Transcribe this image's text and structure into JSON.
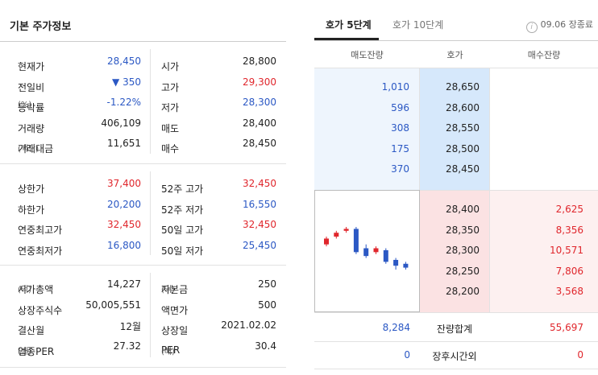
{
  "basic_info": {
    "title": "기본 주가정보",
    "group1": [
      {
        "label": "현재가",
        "unit": "",
        "value": "28,450",
        "value_color": "blue",
        "label2": "시가",
        "unit2": "",
        "value2": "28,800",
        "value2_color": "black"
      },
      {
        "label": "전일비",
        "unit": "",
        "value": "▼ 350",
        "value_color": "blue",
        "label2": "고가",
        "unit2": "",
        "value2": "29,300",
        "value2_color": "red"
      },
      {
        "label": "등락률",
        "unit": "(%)",
        "value": "-1.22%",
        "value_color": "blue",
        "label2": "저가",
        "unit2": "",
        "value2": "28,300",
        "value2_color": "blue"
      },
      {
        "label": "거래량",
        "unit": "",
        "value": "406,109",
        "value_color": "black",
        "label2": "매도",
        "unit2": "",
        "value2": "28,400",
        "value2_color": "black"
      },
      {
        "label": "거래대금",
        "unit": "(백만)",
        "value": "11,651",
        "value_color": "black",
        "label2": "매수",
        "unit2": "",
        "value2": "28,450",
        "value2_color": "black"
      }
    ],
    "group2": [
      {
        "label": "상한가",
        "unit": "",
        "value": "37,400",
        "value_color": "red",
        "label2": "52주 고가",
        "unit2": "",
        "value2": "32,450",
        "value2_color": "red"
      },
      {
        "label": "하한가",
        "unit": "",
        "value": "20,200",
        "value_color": "blue",
        "label2": "52주 저가",
        "unit2": "",
        "value2": "16,550",
        "value2_color": "blue"
      },
      {
        "label": "연중최고가",
        "unit": "",
        "value": "32,450",
        "value_color": "red",
        "label2": "50일 고가",
        "unit2": "",
        "value2": "32,450",
        "value2_color": "red"
      },
      {
        "label": "연중최저가",
        "unit": "",
        "value": "16,800",
        "value_color": "blue",
        "label2": "50일 저가",
        "unit2": "",
        "value2": "25,450",
        "value2_color": "blue"
      }
    ],
    "group3": [
      {
        "label": "시가총액",
        "unit": "(억)",
        "value": "14,227",
        "value_color": "black",
        "label2": "자본금",
        "unit2": "(억)",
        "value2": "250",
        "value2_color": "black"
      },
      {
        "label": "상장주식수",
        "unit": "",
        "value": "50,005,551",
        "value_color": "black",
        "label2": "액면가",
        "unit2": "",
        "value2": "500",
        "value2_color": "black"
      },
      {
        "label": "결산월",
        "unit": "",
        "value": "12월",
        "value_color": "black",
        "label2": "상장일",
        "unit2": "",
        "value2": "2021.02.02",
        "value2_color": "black"
      },
      {
        "label": "업종PER",
        "unit": "(배)",
        "value": "27.32",
        "value_color": "black",
        "label2": "PER",
        "unit2": "(배)",
        "value2": "30.4",
        "value2_color": "black"
      }
    ]
  },
  "orderbook": {
    "tabs": [
      {
        "label": "호가 5단계",
        "active": true
      },
      {
        "label": "호가 10단계",
        "active": false
      }
    ],
    "time_text": "09.06 장종료",
    "info_icon": "info-icon",
    "headers": {
      "sell": "매도잔량",
      "price": "호가",
      "buy": "매수잔량"
    },
    "asks": [
      {
        "volume": "1,010",
        "price": "28,650"
      },
      {
        "volume": "596",
        "price": "28,600"
      },
      {
        "volume": "308",
        "price": "28,550"
      },
      {
        "volume": "175",
        "price": "28,500"
      },
      {
        "volume": "370",
        "price": "28,450"
      }
    ],
    "bids": [
      {
        "price": "28,400",
        "volume": "2,625"
      },
      {
        "price": "28,350",
        "volume": "8,356"
      },
      {
        "price": "28,300",
        "volume": "10,571"
      },
      {
        "price": "28,250",
        "volume": "7,806"
      },
      {
        "price": "28,200",
        "volume": "3,568"
      }
    ],
    "summary": [
      {
        "sell": "8,284",
        "label": "잔량합계",
        "buy": "55,697"
      },
      {
        "sell": "0",
        "label": "장후시간외",
        "buy": "0"
      }
    ],
    "mini_chart": {
      "type": "candlestick",
      "up_color": "#e0262c",
      "down_color": "#2b58c4",
      "candles": [
        {
          "open": 28400,
          "close": 28550,
          "high": 28600,
          "low": 28350
        },
        {
          "open": 28600,
          "close": 28700,
          "high": 28750,
          "low": 28550
        },
        {
          "open": 28750,
          "close": 28800,
          "high": 28850,
          "low": 28700
        },
        {
          "open": 28800,
          "close": 28200,
          "high": 28850,
          "low": 28150
        },
        {
          "open": 28300,
          "close": 28100,
          "high": 28400,
          "low": 28050
        },
        {
          "open": 28200,
          "close": 28300,
          "high": 28350,
          "low": 28150
        },
        {
          "open": 28250,
          "close": 27950,
          "high": 28300,
          "low": 27900
        },
        {
          "open": 28000,
          "close": 27850,
          "high": 28050,
          "low": 27750
        },
        {
          "open": 27900,
          "close": 27800,
          "high": 27950,
          "low": 27750
        }
      ]
    }
  }
}
